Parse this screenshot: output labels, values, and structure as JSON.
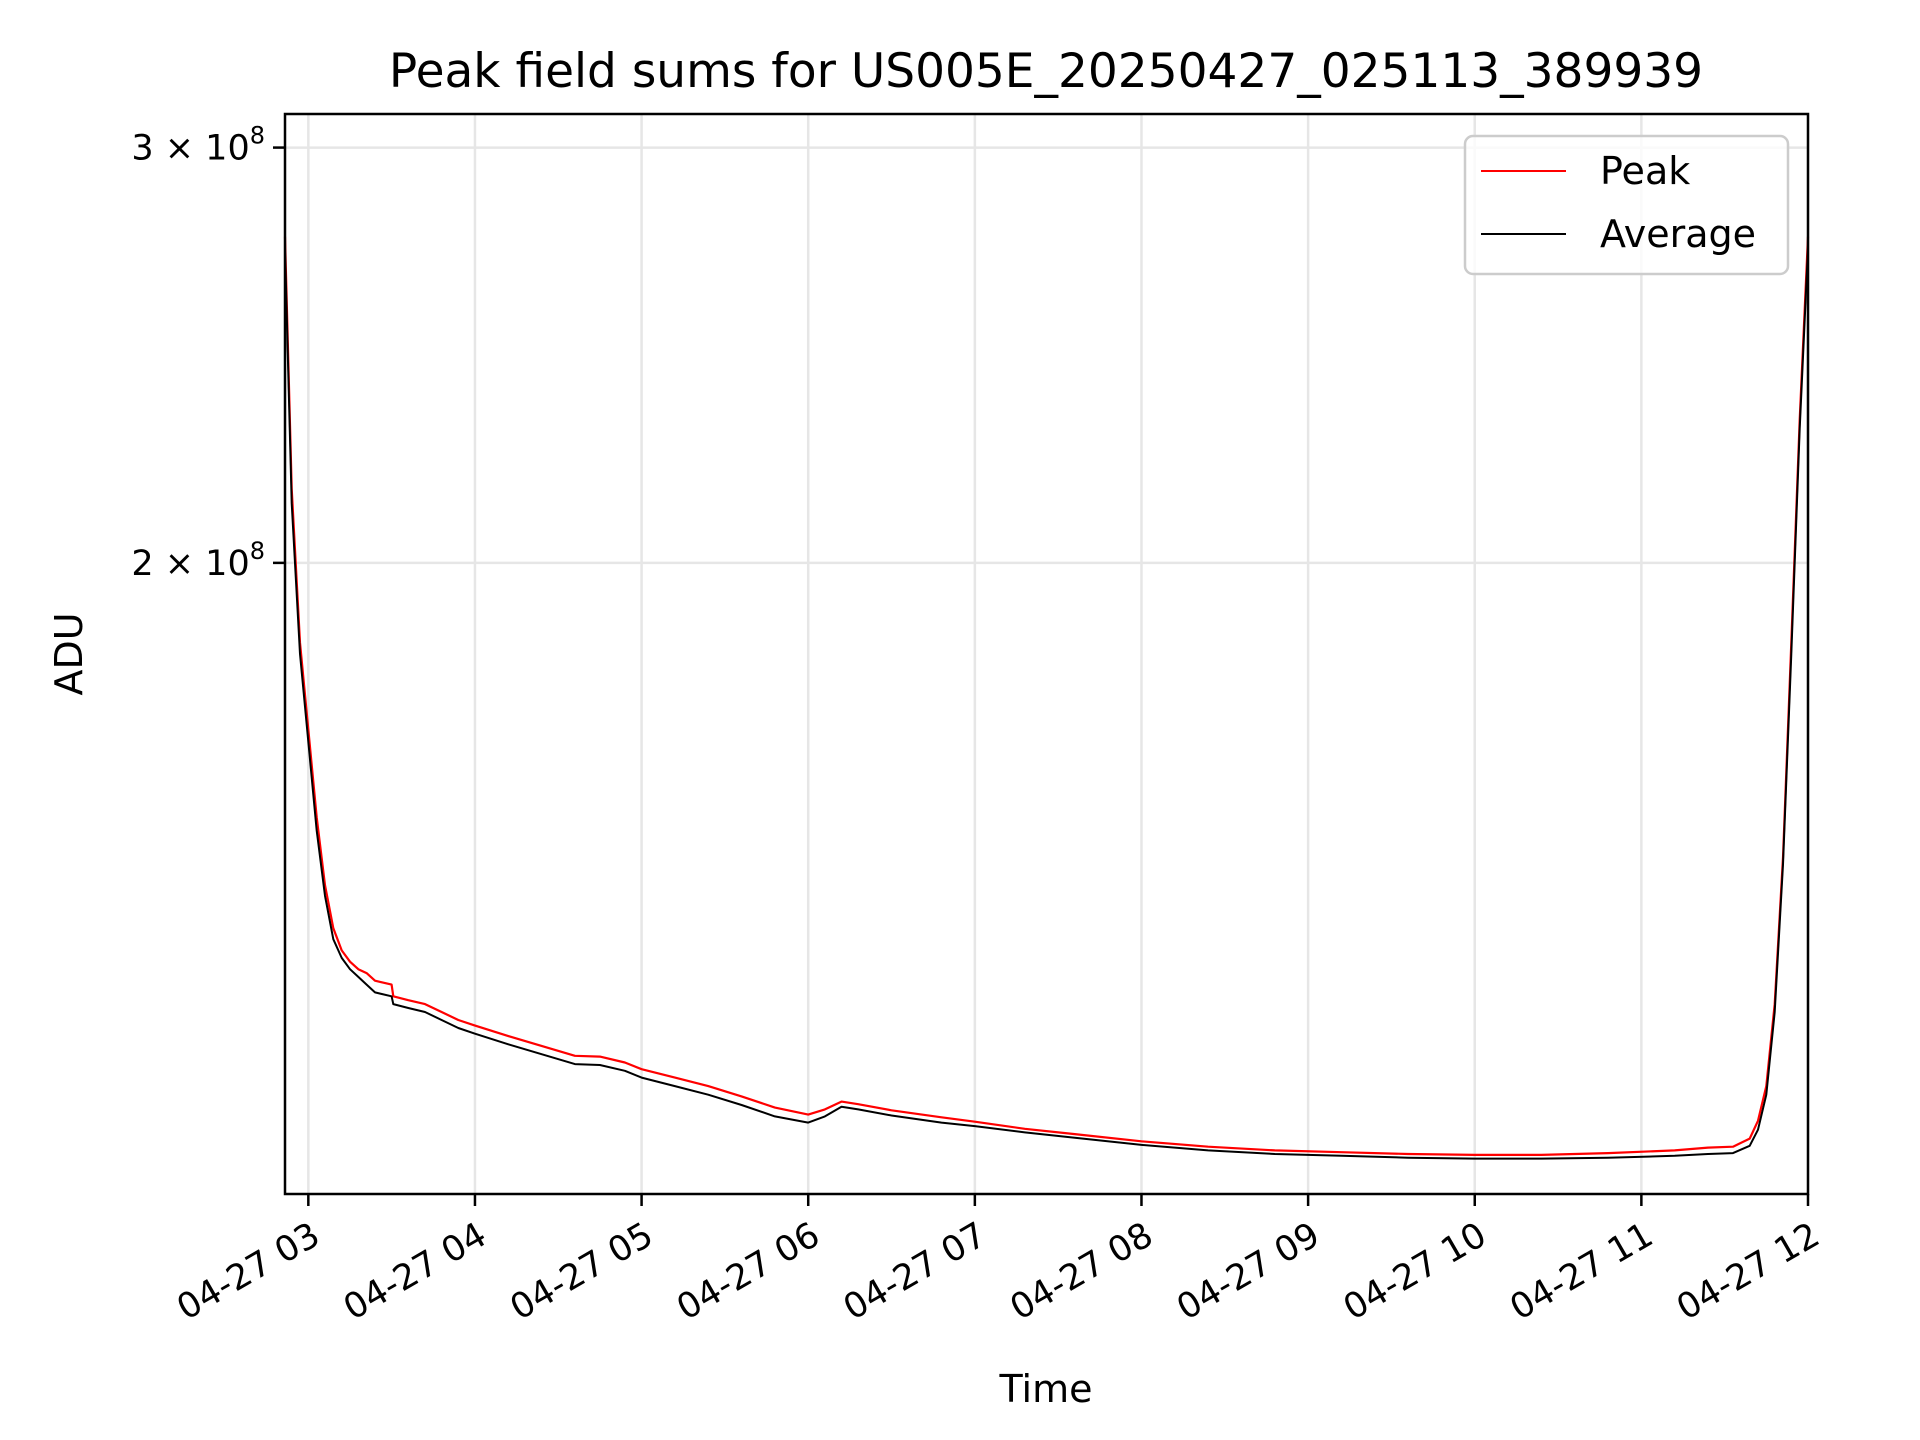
{
  "chart_data": {
    "type": "line",
    "title": "Peak field sums for US005E_20250427_025113_389939",
    "xlabel": "Time",
    "ylabel": "ADU",
    "y_scale": "log",
    "ylim": [
      108000000,
      310000000
    ],
    "xlim_hours": [
      2.86,
      12.0
    ],
    "x_ticks": [
      {
        "value": 3,
        "label": "04-27 03"
      },
      {
        "value": 4,
        "label": "04-27 04"
      },
      {
        "value": 5,
        "label": "04-27 05"
      },
      {
        "value": 6,
        "label": "04-27 06"
      },
      {
        "value": 7,
        "label": "04-27 07"
      },
      {
        "value": 8,
        "label": "04-27 08"
      },
      {
        "value": 9,
        "label": "04-27 09"
      },
      {
        "value": 10,
        "label": "04-27 10"
      },
      {
        "value": 11,
        "label": "04-27 11"
      },
      {
        "value": 12,
        "label": "04-27 12"
      }
    ],
    "y_ticks": [
      {
        "value": 200000000,
        "mantissa": "2",
        "times": "×",
        "base": "10",
        "exponent": "8"
      },
      {
        "value": 300000000,
        "mantissa": "3",
        "times": "×",
        "base": "10",
        "exponent": "8"
      }
    ],
    "grid": true,
    "legend_position": "top-right",
    "series": [
      {
        "name": "Peak",
        "color": "#ff0000",
        "x": [
          2.86,
          2.9,
          2.95,
          3.0,
          3.05,
          3.1,
          3.15,
          3.2,
          3.25,
          3.3,
          3.35,
          3.4,
          3.5,
          3.51,
          3.6,
          3.7,
          3.8,
          3.9,
          4.0,
          4.2,
          4.4,
          4.6,
          4.75,
          4.9,
          5.0,
          5.2,
          5.4,
          5.6,
          5.8,
          6.0,
          6.1,
          6.2,
          6.3,
          6.5,
          6.8,
          7.0,
          7.3,
          7.6,
          8.0,
          8.4,
          8.8,
          9.2,
          9.6,
          10.0,
          10.4,
          10.8,
          11.2,
          11.4,
          11.55,
          11.65,
          11.7,
          11.75,
          11.8,
          11.85,
          11.9,
          11.95,
          12.0
        ],
        "y": [
          275000000,
          215000000,
          185000000,
          170000000,
          156000000,
          146000000,
          140000000,
          137000000,
          135500000,
          134500000,
          134000000,
          133000000,
          132500000,
          131000000,
          130500000,
          130000000,
          129000000,
          128000000,
          127300000,
          126000000,
          124800000,
          123600000,
          123500000,
          122800000,
          122000000,
          121000000,
          120000000,
          118800000,
          117500000,
          116700000,
          117300000,
          118200000,
          117900000,
          117200000,
          116400000,
          115900000,
          115100000,
          114500000,
          113700000,
          113100000,
          112700000,
          112500000,
          112300000,
          112200000,
          112200000,
          112400000,
          112700000,
          113000000,
          113100000,
          114000000,
          116000000,
          120000000,
          130000000,
          150000000,
          185000000,
          230000000,
          275000000
        ]
      },
      {
        "name": "Average",
        "color": "#000000",
        "x": [
          2.86,
          2.9,
          2.95,
          3.0,
          3.05,
          3.1,
          3.15,
          3.2,
          3.25,
          3.3,
          3.35,
          3.4,
          3.5,
          3.51,
          3.6,
          3.7,
          3.8,
          3.9,
          4.0,
          4.2,
          4.4,
          4.6,
          4.75,
          4.9,
          5.0,
          5.2,
          5.4,
          5.6,
          5.8,
          6.0,
          6.1,
          6.2,
          6.3,
          6.5,
          6.8,
          7.0,
          7.3,
          7.6,
          8.0,
          8.4,
          8.8,
          9.2,
          9.6,
          10.0,
          10.4,
          10.8,
          11.2,
          11.4,
          11.55,
          11.65,
          11.7,
          11.75,
          11.8,
          11.85,
          11.9,
          11.95,
          12.0
        ],
        "y": [
          272000000,
          212000000,
          183000000,
          168000000,
          154000000,
          144500000,
          138500000,
          136000000,
          134500000,
          133500000,
          132500000,
          131500000,
          131000000,
          130000000,
          129500000,
          129000000,
          128000000,
          127000000,
          126300000,
          125000000,
          123800000,
          122600000,
          122500000,
          121800000,
          121000000,
          120000000,
          119000000,
          117800000,
          116500000,
          115800000,
          116500000,
          117600000,
          117300000,
          116600000,
          115800000,
          115400000,
          114700000,
          114100000,
          113300000,
          112700000,
          112300000,
          112100000,
          111900000,
          111800000,
          111800000,
          111900000,
          112100000,
          112300000,
          112400000,
          113200000,
          115000000,
          119000000,
          129000000,
          149000000,
          183000000,
          228000000,
          272000000
        ]
      }
    ]
  }
}
